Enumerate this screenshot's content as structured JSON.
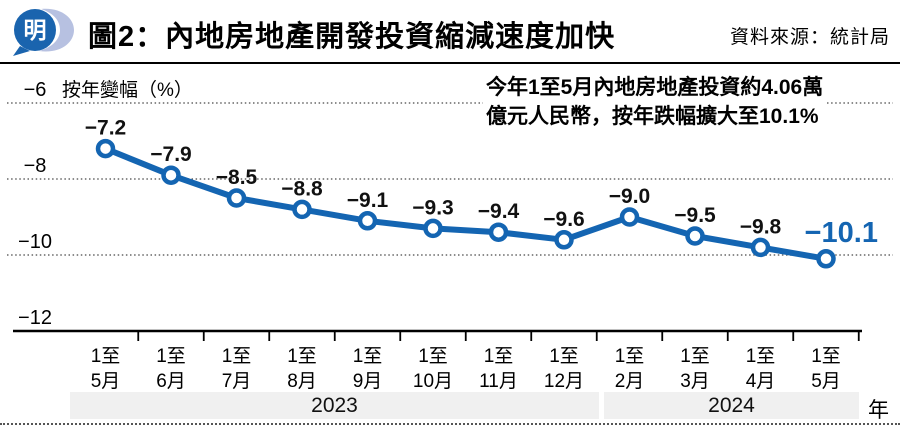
{
  "header": {
    "logo_text": "明",
    "title": "圖2：內地房地產開發投資縮減速度加快",
    "source": "資料來源：統計局"
  },
  "annotation": {
    "line1": "今年1至5月內地房地產投資約4.06萬",
    "line2": "億元人民幣，按年跌幅擴大至10.1%"
  },
  "colors": {
    "accent_blue": "#1465b2",
    "logo_blue": "#1a64ae",
    "logo_swoosh": "#b7c1e1",
    "band_gray": "#f0f0f0"
  },
  "chart_data": {
    "type": "line",
    "title": "圖2：內地房地產開發投資縮減速度加快",
    "ylabel": "按年變幅（%）",
    "ylim": [
      -12,
      -6
    ],
    "grid": "dotted horizontal",
    "legend_position": "none",
    "line_color": "#1465b2",
    "y_ticks": [
      {
        "value": -6,
        "label": "−6"
      },
      {
        "value": -8,
        "label": "−8"
      },
      {
        "value": -10,
        "label": "−10"
      },
      {
        "value": -12,
        "label": "−12"
      }
    ],
    "categories": [
      "1至5月",
      "1至6月",
      "1至7月",
      "1至8月",
      "1至9月",
      "1至10月",
      "1至11月",
      "1至12月",
      "1至2月",
      "1至3月",
      "1至4月",
      "1至5月"
    ],
    "x_tick_labels": [
      [
        "1至",
        "5月"
      ],
      [
        "1至",
        "6月"
      ],
      [
        "1至",
        "7月"
      ],
      [
        "1至",
        "8月"
      ],
      [
        "1至",
        "9月"
      ],
      [
        "1至",
        "10月"
      ],
      [
        "1至",
        "11月"
      ],
      [
        "1至",
        "12月"
      ],
      [
        "1至",
        "2月"
      ],
      [
        "1至",
        "3月"
      ],
      [
        "1至",
        "4月"
      ],
      [
        "1至",
        "5月"
      ]
    ],
    "values": [
      -7.2,
      -7.9,
      -8.5,
      -8.8,
      -9.1,
      -9.3,
      -9.4,
      -9.6,
      -9.0,
      -9.5,
      -9.8,
      -10.1
    ],
    "point_labels": [
      "−7.2",
      "−7.9",
      "−8.5",
      "−8.8",
      "−9.1",
      "−9.3",
      "−9.4",
      "−9.6",
      "−9.0",
      "−9.5",
      "−9.8",
      "−10.1"
    ],
    "highlight_last_label": "−10.1",
    "year_groups": [
      {
        "label": "2023",
        "span": [
          0,
          7
        ]
      },
      {
        "label": "2024",
        "span": [
          8,
          11
        ]
      }
    ],
    "x_unit": "年"
  }
}
